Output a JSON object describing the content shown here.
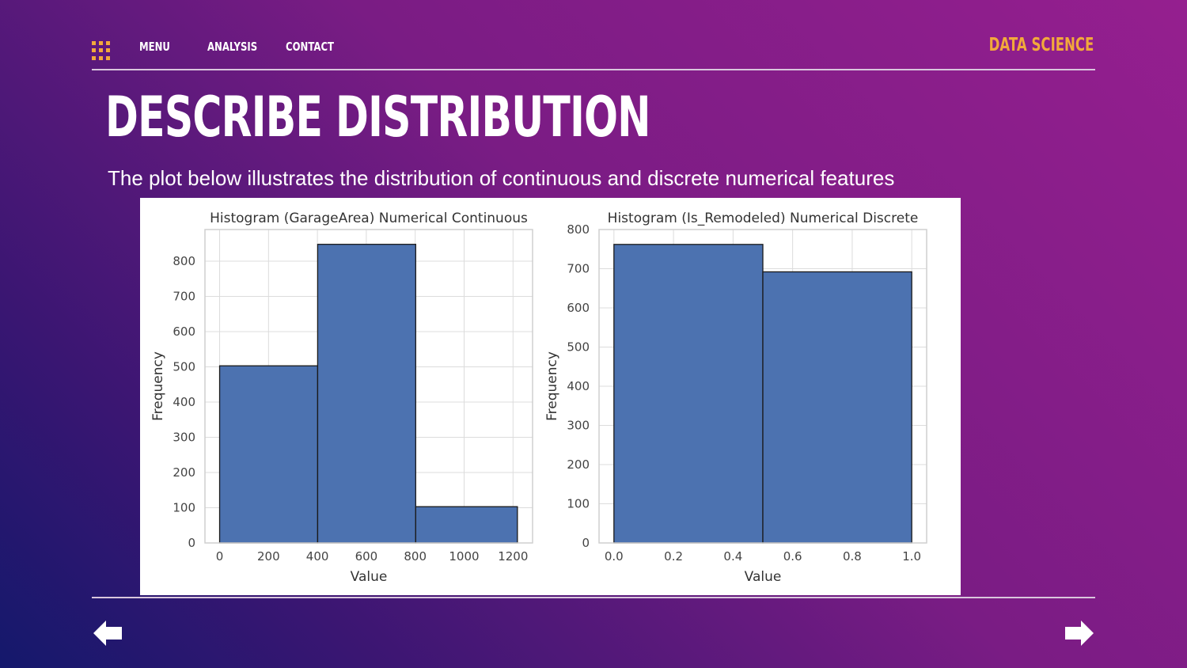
{
  "nav": {
    "items": [
      "MENU",
      "ANALYSIS",
      "CONTACT"
    ],
    "brand": "DATA SCIENCE"
  },
  "slide": {
    "title": "DESCRIBE DISTRIBUTION",
    "subtitle": "The plot below illustrates the distribution of continuous and discrete numerical features"
  },
  "colors": {
    "accent": "#f2a93b",
    "bar": "#4c72b0",
    "bar_edge": "#1a1a1a"
  },
  "icons": {
    "nav": "grid-menu-icon",
    "prev": "arrow-left-icon",
    "next": "arrow-right-icon"
  },
  "chart_data": [
    {
      "type": "bar",
      "title": "Histogram (GarageArea) Numerical Continuous",
      "xlabel": "Value",
      "ylabel": "Frequency",
      "bins": [
        [
          0,
          401
        ],
        [
          401,
          802
        ],
        [
          802,
          1218
        ]
      ],
      "values": [
        503,
        848,
        103
      ],
      "xlim": [
        -60,
        1280
      ],
      "ylim": [
        0,
        890
      ],
      "xticks": [
        0,
        200,
        400,
        600,
        800,
        1000,
        1200
      ],
      "xtick_labels": [
        "0",
        "200",
        "400",
        "600",
        "800",
        "1000",
        "1200"
      ],
      "yticks": [
        0,
        100,
        200,
        300,
        400,
        500,
        600,
        700,
        800
      ],
      "ytick_labels": [
        "0",
        "100",
        "200",
        "300",
        "400",
        "500",
        "600",
        "700",
        "800"
      ],
      "grid": true
    },
    {
      "type": "bar",
      "title": "Histogram (Is_Remodeled) Numerical Discrete",
      "xlabel": "Value",
      "ylabel": "Frequency",
      "bins": [
        [
          0.0,
          0.5
        ],
        [
          0.5,
          1.0
        ]
      ],
      "values": [
        762,
        692
      ],
      "xlim": [
        -0.05,
        1.05
      ],
      "ylim": [
        0,
        800
      ],
      "xticks": [
        0.0,
        0.2,
        0.4,
        0.6,
        0.8,
        1.0
      ],
      "xtick_labels": [
        "0.0",
        "0.2",
        "0.4",
        "0.6",
        "0.8",
        "1.0"
      ],
      "yticks": [
        0,
        100,
        200,
        300,
        400,
        500,
        600,
        700,
        800
      ],
      "ytick_labels": [
        "0",
        "100",
        "200",
        "300",
        "400",
        "500",
        "600",
        "700",
        "800"
      ],
      "grid": true
    }
  ]
}
